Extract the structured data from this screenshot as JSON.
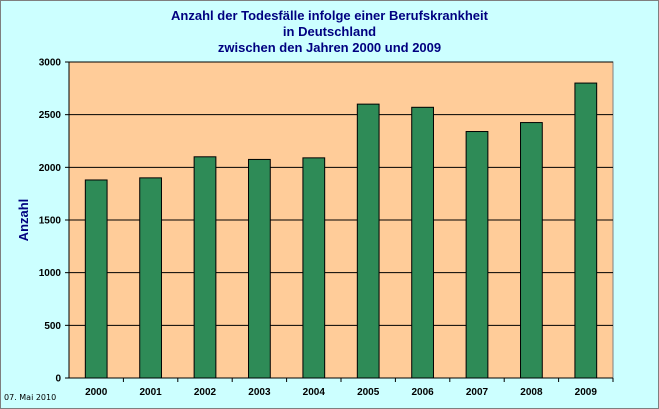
{
  "chart_data": {
    "type": "bar",
    "title_lines": [
      "Anzahl der Todesfälle infolge einer Berufskrankheit",
      "in Deutschland",
      "zwischen den Jahren 2000 und 2009"
    ],
    "xlabel": "",
    "ylabel": "Anzahl",
    "categories": [
      "2000",
      "2001",
      "2002",
      "2003",
      "2004",
      "2005",
      "2006",
      "2007",
      "2008",
      "2009"
    ],
    "values": [
      1880,
      1900,
      2100,
      2075,
      2090,
      2600,
      2570,
      2340,
      2425,
      2800
    ],
    "ylim": [
      0,
      3000
    ],
    "yticks": [
      "0",
      "500",
      "1000",
      "1500",
      "2000",
      "2500",
      "3000"
    ],
    "grid": true,
    "colors": {
      "bar": "#2e8b57",
      "bar_edge": "#000000",
      "plot_area": "#ffcc99",
      "background": "#ccffff",
      "title": "#000080"
    }
  },
  "footnote": "07. Mai 2010"
}
